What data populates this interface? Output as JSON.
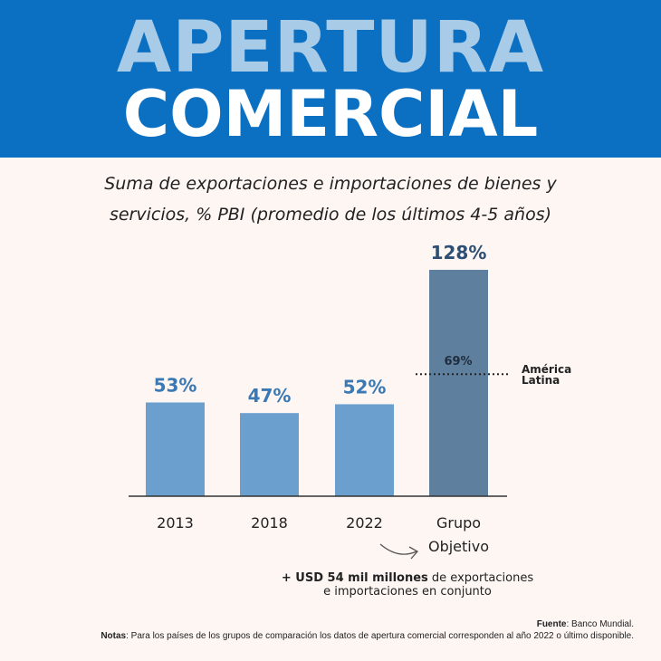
{
  "header": {
    "line1": "APERTURA",
    "line2": "COMERCIAL"
  },
  "colors": {
    "header_bg": "#0b6fc2",
    "bar": "#6a9fce",
    "bar_target": "#5f7f9f",
    "label": "#3b79b5",
    "label_target": "#2d4f74"
  },
  "chart_data": {
    "type": "bar",
    "title": "Suma de exportaciones e importaciones de bienes y servicios, % PBI (promedio de los últimos 4-5 años)",
    "title_line1": "Suma de exportaciones e importaciones de bienes y",
    "title_line2": "servicios, % PBI (promedio de los últimos 4-5 años)",
    "categories": [
      "2013",
      "2018",
      "2022",
      "Grupo Objetivo"
    ],
    "category_lines": [
      [
        "2013"
      ],
      [
        "2018"
      ],
      [
        "2022"
      ],
      [
        "Grupo",
        "Objetivo"
      ]
    ],
    "values": [
      53,
      47,
      52,
      128
    ],
    "data_labels": [
      "53%",
      "47%",
      "52%",
      "128%"
    ],
    "ylim": [
      0,
      128
    ],
    "reference_line": {
      "value": 69,
      "value_label": "69%",
      "label_line1": "América",
      "label_line2": "Latina"
    },
    "xlabel": "",
    "ylabel": "",
    "grid": false
  },
  "annotation": {
    "bold": "+ USD 54 mil millones",
    "rest1": " de exportaciones",
    "line2": "e importaciones en conjunto"
  },
  "footer": {
    "source_label": "Fuente",
    "source_text": ": Banco Mundial.",
    "notes_label": "Notas",
    "notes_text": ": Para los países de los grupos de comparación los datos de apertura comercial corresponden al año 2022 o último disponible."
  }
}
